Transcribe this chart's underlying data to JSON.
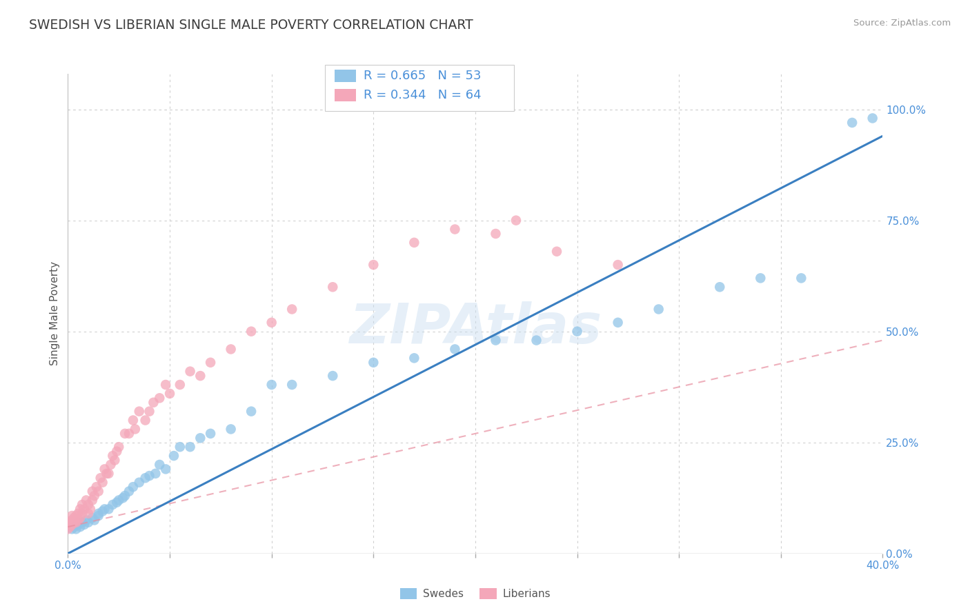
{
  "title": "SWEDISH VS LIBERIAN SINGLE MALE POVERTY CORRELATION CHART",
  "source_text": "Source: ZipAtlas.com",
  "ylabel": "Single Male Poverty",
  "watermark": "ZIPAtlas",
  "xlim": [
    0.0,
    0.4
  ],
  "ylim": [
    0.0,
    1.08
  ],
  "x_ticks": [
    0.0,
    0.05,
    0.1,
    0.15,
    0.2,
    0.25,
    0.3,
    0.35,
    0.4
  ],
  "x_tick_labels": [
    "0.0%",
    "",
    "",
    "",
    "",
    "",
    "",
    "",
    "40.0%"
  ],
  "y_ticks_right": [
    0.0,
    0.25,
    0.5,
    0.75,
    1.0
  ],
  "y_tick_labels_right": [
    "0.0%",
    "25.0%",
    "50.0%",
    "75.0%",
    "100.0%"
  ],
  "grid_color": "#d0d0d0",
  "swede_color": "#92c5e8",
  "liberian_color": "#f4a7b9",
  "swede_line_color": "#3a7fc1",
  "liberian_line_color": "#e88fa0",
  "R_swede": 0.665,
  "N_swede": 53,
  "R_liberian": 0.344,
  "N_liberian": 64,
  "background_color": "#ffffff",
  "title_color": "#3d3d3d",
  "axis_label_color": "#4a90d9",
  "legend_R_color": "#4a90d9",
  "swede_slope": 2.35,
  "swede_intercept": 0.0,
  "liberian_slope": 1.05,
  "liberian_intercept": 0.06,
  "swedes_x": [
    0.002,
    0.003,
    0.004,
    0.005,
    0.005,
    0.006,
    0.007,
    0.008,
    0.009,
    0.01,
    0.012,
    0.013,
    0.015,
    0.015,
    0.017,
    0.018,
    0.02,
    0.022,
    0.024,
    0.025,
    0.027,
    0.028,
    0.03,
    0.032,
    0.035,
    0.038,
    0.04,
    0.043,
    0.045,
    0.048,
    0.052,
    0.055,
    0.06,
    0.065,
    0.07,
    0.08,
    0.09,
    0.1,
    0.11,
    0.13,
    0.15,
    0.17,
    0.19,
    0.21,
    0.23,
    0.25,
    0.27,
    0.29,
    0.32,
    0.34,
    0.36,
    0.385,
    0.395
  ],
  "swedes_y": [
    0.055,
    0.06,
    0.055,
    0.07,
    0.065,
    0.06,
    0.07,
    0.065,
    0.075,
    0.07,
    0.08,
    0.075,
    0.085,
    0.09,
    0.095,
    0.1,
    0.1,
    0.11,
    0.115,
    0.12,
    0.125,
    0.13,
    0.14,
    0.15,
    0.16,
    0.17,
    0.175,
    0.18,
    0.2,
    0.19,
    0.22,
    0.24,
    0.24,
    0.26,
    0.27,
    0.28,
    0.32,
    0.38,
    0.38,
    0.4,
    0.43,
    0.44,
    0.46,
    0.48,
    0.48,
    0.5,
    0.52,
    0.55,
    0.6,
    0.62,
    0.62,
    0.97,
    0.98
  ],
  "liberians_x": [
    0.0,
    0.0,
    0.001,
    0.001,
    0.002,
    0.002,
    0.002,
    0.003,
    0.003,
    0.004,
    0.004,
    0.005,
    0.005,
    0.006,
    0.006,
    0.007,
    0.007,
    0.008,
    0.009,
    0.01,
    0.01,
    0.011,
    0.012,
    0.012,
    0.013,
    0.014,
    0.015,
    0.016,
    0.017,
    0.018,
    0.019,
    0.02,
    0.021,
    0.022,
    0.023,
    0.024,
    0.025,
    0.028,
    0.03,
    0.032,
    0.033,
    0.035,
    0.038,
    0.04,
    0.042,
    0.045,
    0.048,
    0.05,
    0.055,
    0.06,
    0.065,
    0.07,
    0.08,
    0.09,
    0.1,
    0.11,
    0.13,
    0.15,
    0.17,
    0.19,
    0.21,
    0.22,
    0.24,
    0.27
  ],
  "liberians_y": [
    0.055,
    0.065,
    0.06,
    0.07,
    0.065,
    0.075,
    0.085,
    0.07,
    0.08,
    0.07,
    0.085,
    0.075,
    0.09,
    0.08,
    0.1,
    0.09,
    0.11,
    0.1,
    0.12,
    0.09,
    0.11,
    0.1,
    0.12,
    0.14,
    0.13,
    0.15,
    0.14,
    0.17,
    0.16,
    0.19,
    0.18,
    0.18,
    0.2,
    0.22,
    0.21,
    0.23,
    0.24,
    0.27,
    0.27,
    0.3,
    0.28,
    0.32,
    0.3,
    0.32,
    0.34,
    0.35,
    0.38,
    0.36,
    0.38,
    0.41,
    0.4,
    0.43,
    0.46,
    0.5,
    0.52,
    0.55,
    0.6,
    0.65,
    0.7,
    0.73,
    0.72,
    0.75,
    0.68,
    0.65
  ]
}
